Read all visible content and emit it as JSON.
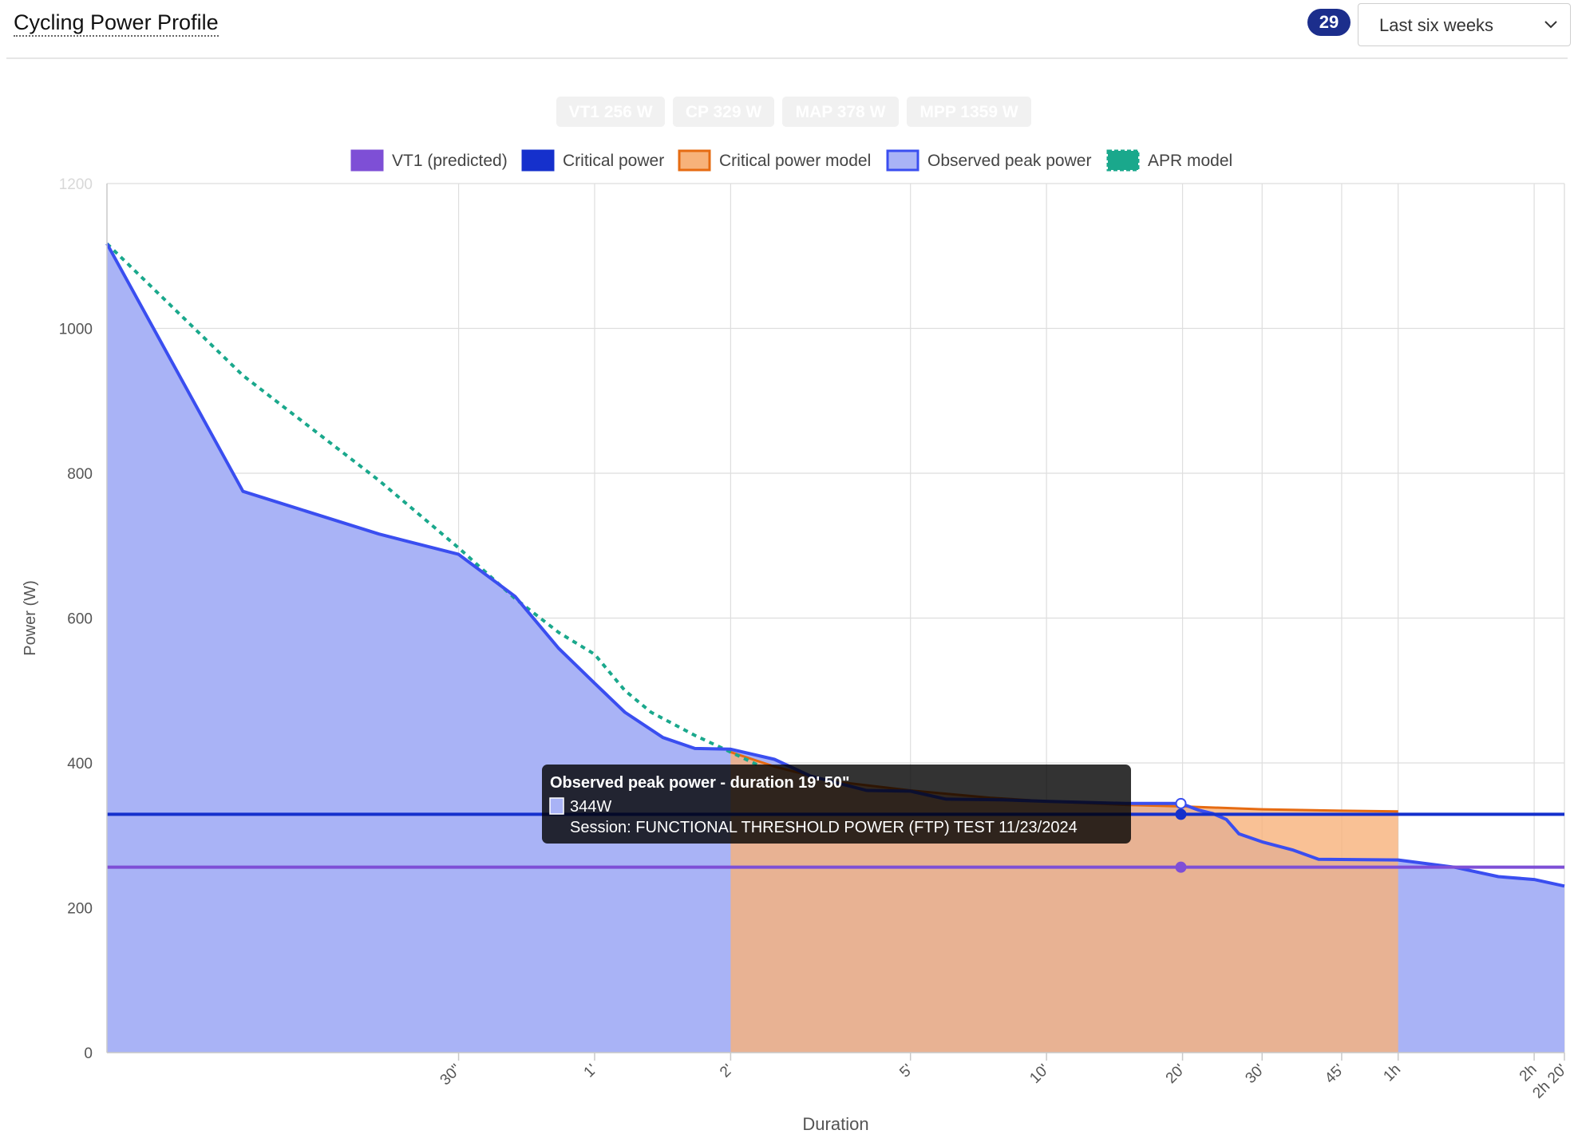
{
  "header": {
    "title": "Cycling Power Profile",
    "session_count": "29",
    "range_value": "Last six weeks"
  },
  "icons": {
    "dropdown": "chevron-down-icon"
  },
  "colors": {
    "vt1": "#7e4fd6",
    "critical_power": "#1530cc",
    "cp_model_fill": "#f7b27a",
    "cp_model_line": "#e66b12",
    "observed_fill": "#a9b3f6",
    "observed_line": "#3a4ef0",
    "apr": "#1aa88c",
    "badge": "#1c2e8c"
  },
  "summary_chips": [
    "VT1 256 W",
    "CP 329 W",
    "MAP 378 W",
    "MPP 1359 W"
  ],
  "legend": [
    {
      "label": "VT1 (predicted)",
      "key": "vt1"
    },
    {
      "label": "Critical power",
      "key": "critical_power"
    },
    {
      "label": "Critical power model",
      "key": "cp_model"
    },
    {
      "label": "Observed peak power",
      "key": "observed"
    },
    {
      "label": "APR model",
      "key": "apr"
    }
  ],
  "tooltip": {
    "title": "Observed peak power - duration 19' 50\"",
    "value": "344W",
    "session": "Session: FUNCTIONAL THRESHOLD POWER (FTP) TEST 11/23/2024"
  },
  "chart_data": {
    "type": "area",
    "xlabel": "Duration",
    "ylabel": "Power (W)",
    "x_scale": "log",
    "xlim_seconds": [
      5,
      8400
    ],
    "ylim": [
      0,
      1200
    ],
    "y_ticks": [
      0,
      200,
      400,
      600,
      800,
      1000,
      1200
    ],
    "x_ticks": [
      {
        "seconds": 30,
        "label": "30\""
      },
      {
        "seconds": 60,
        "label": "1'"
      },
      {
        "seconds": 120,
        "label": "2'"
      },
      {
        "seconds": 300,
        "label": "5'"
      },
      {
        "seconds": 600,
        "label": "10'"
      },
      {
        "seconds": 1200,
        "label": "20'"
      },
      {
        "seconds": 1800,
        "label": "30'"
      },
      {
        "seconds": 2700,
        "label": "45'"
      },
      {
        "seconds": 3600,
        "label": "1h"
      },
      {
        "seconds": 7200,
        "label": "2h"
      },
      {
        "seconds": 8400,
        "label": "2h 20'"
      }
    ],
    "grid": true,
    "legend_position": "top",
    "series": [
      {
        "name": "VT1 (predicted)",
        "key": "vt1",
        "type": "hline",
        "value": 256,
        "marker_at_seconds": 1190
      },
      {
        "name": "Critical power",
        "key": "critical_power",
        "type": "hline",
        "value": 329,
        "marker_at_seconds": 1190
      },
      {
        "name": "Critical power model",
        "key": "cp_model",
        "type": "area",
        "x": [
          120,
          150,
          200,
          300,
          450,
          600,
          900,
          1200,
          1800,
          2700,
          3600
        ],
        "y": [
          415,
          395,
          375,
          362,
          352,
          347,
          342,
          340,
          336,
          334,
          333
        ]
      },
      {
        "name": "Observed peak power",
        "key": "observed",
        "type": "area",
        "x": [
          5,
          10,
          20,
          30,
          40,
          50,
          60,
          70,
          85,
          100,
          120,
          150,
          180,
          240,
          300,
          360,
          480,
          600,
          900,
          1190,
          1300,
          1400,
          1500,
          1600,
          1800,
          2100,
          2400,
          3600,
          4800,
          6000,
          7200,
          8400
        ],
        "y": [
          1117,
          775,
          716,
          688,
          630,
          558,
          510,
          470,
          435,
          420,
          419,
          405,
          382,
          362,
          361,
          350,
          349,
          347,
          344,
          344,
          335,
          330,
          322,
          302,
          291,
          280,
          267,
          266,
          256,
          243,
          239,
          230
        ]
      },
      {
        "name": "APR model",
        "key": "apr",
        "type": "line",
        "x": [
          5,
          10,
          20,
          30,
          40,
          50,
          60,
          70,
          80,
          100,
          120,
          140
        ],
        "y": [
          1117,
          935,
          790,
          697,
          627,
          580,
          550,
          500,
          470,
          438,
          415,
          395
        ]
      }
    ]
  }
}
